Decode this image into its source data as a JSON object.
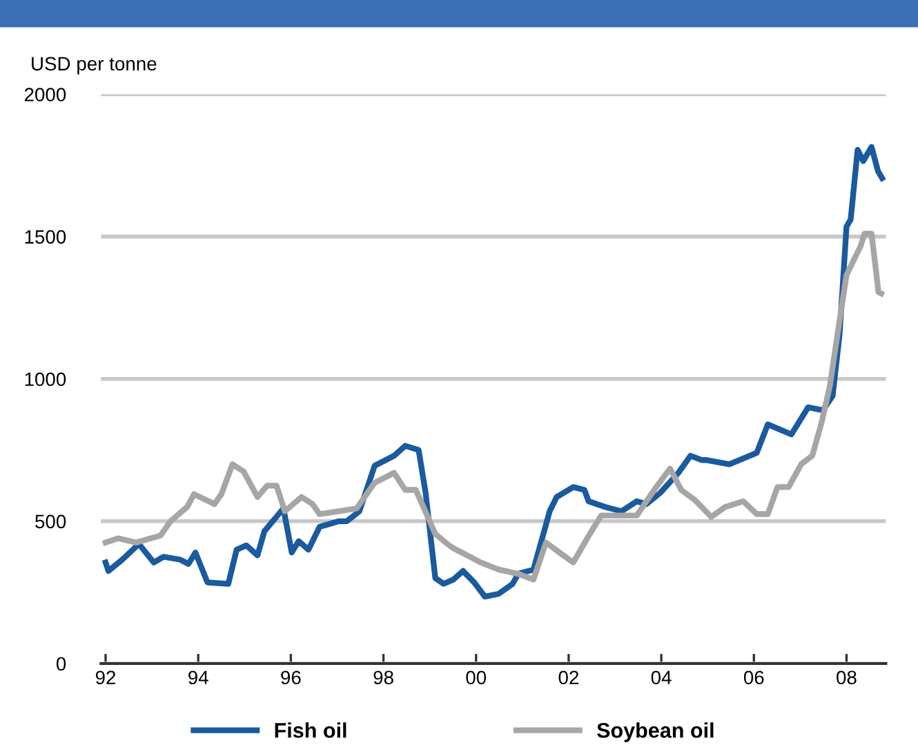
{
  "chart_data": {
    "type": "line",
    "ylabel": "USD per tonne",
    "xlim": [
      1991.9,
      2008.85
    ],
    "ylim": [
      0,
      2000
    ],
    "xticks": [
      {
        "value": 1992,
        "label": "92"
      },
      {
        "value": 1994,
        "label": "94"
      },
      {
        "value": 1996,
        "label": "96"
      },
      {
        "value": 1998,
        "label": "98"
      },
      {
        "value": 2000,
        "label": "00"
      },
      {
        "value": 2002,
        "label": "02"
      },
      {
        "value": 2004,
        "label": "04"
      },
      {
        "value": 2006,
        "label": "06"
      },
      {
        "value": 2008,
        "label": "08"
      }
    ],
    "yticks": [
      0,
      500,
      1000,
      1500,
      2000
    ],
    "grid": "y",
    "legend": "bottom",
    "line_style": "solid",
    "marker": "none",
    "series": [
      {
        "name": "Fish oil",
        "color": "#1a5a9e",
        "x": [
          1992.0,
          1992.06,
          1992.36,
          1992.72,
          1993.04,
          1993.25,
          1993.61,
          1993.79,
          1993.94,
          1994.2,
          1994.65,
          1994.83,
          1995.04,
          1995.28,
          1995.43,
          1995.84,
          1996.02,
          1996.17,
          1996.38,
          1996.62,
          1997.04,
          1997.21,
          1997.48,
          1997.81,
          1998.23,
          1998.47,
          1998.76,
          1998.91,
          1999.12,
          1999.3,
          1999.51,
          1999.72,
          1999.96,
          2000.19,
          2000.49,
          2000.79,
          2000.91,
          2001.24,
          2001.59,
          2001.74,
          2002.1,
          2002.34,
          2002.43,
          2002.79,
          2003.14,
          2003.47,
          2003.68,
          2003.98,
          2004.37,
          2004.63,
          2004.87,
          2004.96,
          2005.47,
          2006.06,
          2006.3,
          2006.81,
          2007.17,
          2007.49,
          2007.7,
          2007.85,
          2008.0,
          2008.09,
          2008.24,
          2008.36,
          2008.45,
          2008.54,
          2008.68,
          2008.77
        ],
        "values": [
          355,
          325,
          365,
          420,
          355,
          375,
          365,
          350,
          390,
          285,
          280,
          400,
          415,
          380,
          465,
          545,
          390,
          430,
          400,
          480,
          500,
          500,
          535,
          695,
          730,
          765,
          750,
          600,
          300,
          280,
          295,
          325,
          285,
          235,
          245,
          280,
          315,
          330,
          535,
          585,
          620,
          610,
          570,
          550,
          535,
          570,
          560,
          600,
          670,
          730,
          715,
          715,
          700,
          740,
          840,
          805,
          900,
          890,
          940,
          1155,
          1535,
          1560,
          1805,
          1765,
          1790,
          1815,
          1730,
          1705
        ]
      },
      {
        "name": "Soybean oil",
        "color": "#a6a6a6",
        "x": [
          1992.0,
          1992.27,
          1992.66,
          1993.19,
          1993.4,
          1993.76,
          1993.91,
          1994.35,
          1994.5,
          1994.74,
          1994.98,
          1995.28,
          1995.49,
          1995.69,
          1995.87,
          1996.23,
          1996.47,
          1996.62,
          1997.04,
          1997.42,
          1997.81,
          1998.23,
          1998.47,
          1998.7,
          1999.12,
          1999.42,
          1999.51,
          1999.81,
          2000.1,
          2000.49,
          2000.91,
          2001.24,
          2001.51,
          2001.8,
          2002.1,
          2002.4,
          2002.7,
          2003.08,
          2003.47,
          2003.89,
          2004.19,
          2004.43,
          2004.72,
          2005.08,
          2005.38,
          2005.77,
          2006.06,
          2006.3,
          2006.51,
          2006.75,
          2007.02,
          2007.26,
          2007.46,
          2007.64,
          2007.85,
          2008.0,
          2008.15,
          2008.3,
          2008.39,
          2008.54,
          2008.6,
          2008.69,
          2008.75
        ],
        "values": [
          425,
          440,
          425,
          450,
          500,
          550,
          595,
          560,
          595,
          700,
          675,
          585,
          625,
          625,
          535,
          585,
          560,
          525,
          535,
          545,
          635,
          670,
          610,
          610,
          455,
          415,
          405,
          380,
          355,
          330,
          315,
          295,
          425,
          390,
          355,
          440,
          520,
          520,
          520,
          620,
          685,
          610,
          575,
          515,
          550,
          570,
          525,
          525,
          620,
          620,
          700,
          730,
          845,
          975,
          1205,
          1365,
          1415,
          1465,
          1510,
          1510,
          1430,
          1305,
          1300
        ]
      }
    ]
  }
}
